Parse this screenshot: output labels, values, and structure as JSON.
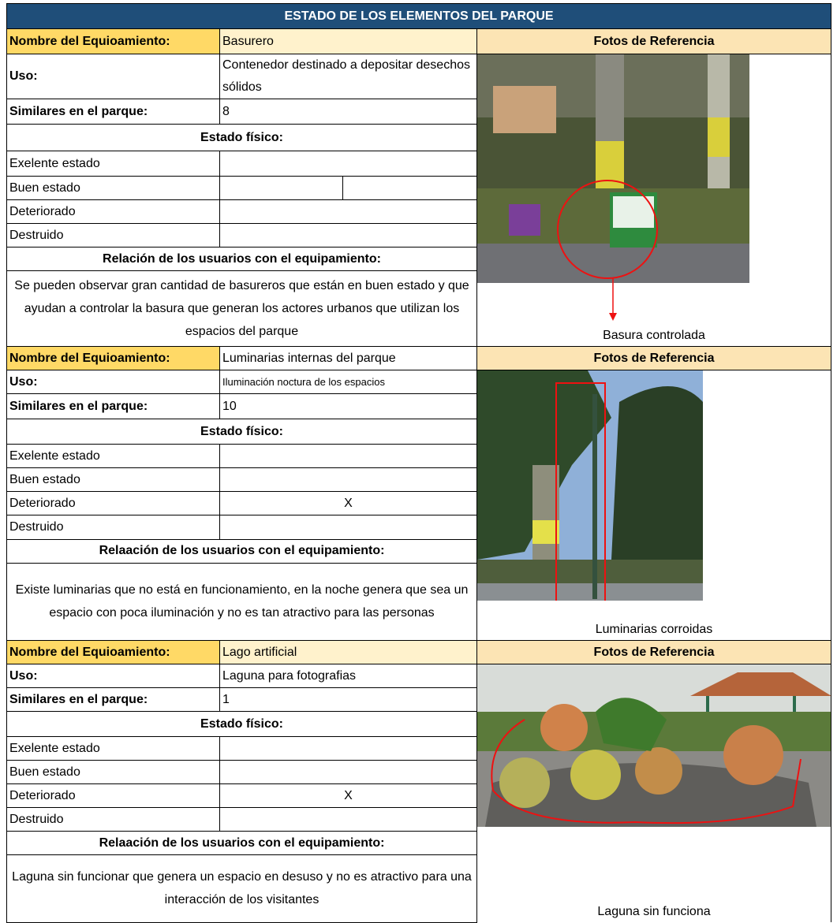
{
  "title": "ESTADO DE LOS ELEMENTOS DEL PARQUE",
  "sections": [
    {
      "name_label": "Nombre del Equioamiento:",
      "name": "Basurero",
      "photos_header": "Fotos de Referencia",
      "uso_label": "Uso:",
      "uso": "Contenedor destinado a depositar desechos sólidos",
      "similares_label": "Similares en el parque:",
      "similares": 8,
      "estado_header": "Estado físico:",
      "estados": [
        {
          "label": "Exelente estado"
        },
        {
          "label": "Buen estado"
        },
        {
          "label": "Deteriorado"
        },
        {
          "label": "Destruido"
        }
      ],
      "relacion_header": "Relación de los usuarios con el equipamiento:",
      "relacion": "Se pueden observar gran cantidad de basureros que están en buen estado y que ayudan a controlar la basura que generan los actores urbanos que utilizan los espacios  del parque",
      "photo_caption": "Basura controlada"
    },
    {
      "name_label": "Nombre del Equioamiento:",
      "name": "Luminarias internas del parque",
      "photos_header": "Fotos de Referencia",
      "uso_label": "Uso:",
      "uso": "Iluminación noctura de los espacios",
      "similares_label": "Similares en el parque:",
      "similares": 10,
      "estado_header": "Estado físico:",
      "estados": [
        {
          "label": "Exelente estado"
        },
        {
          "label": "Buen estado"
        },
        {
          "label": "Deteriorado",
          "mark": "X"
        },
        {
          "label": "Destruido"
        }
      ],
      "relacion_header": "Relaación de los usuarios con el equipamiento:",
      "relacion": "Existe luminarias que no está en funcionamiento, en la noche genera que sea un espacio con poca iluminación y no es tan atractivo para las personas",
      "photo_caption": "Luminarias corroidas"
    },
    {
      "name_label": "Nombre del Equioamiento:",
      "name": "Lago artificial",
      "photos_header": "Fotos de Referencia",
      "uso_label": "Uso:",
      "uso": "Laguna para fotografias",
      "similares_label": "Similares en el parque:",
      "similares": 1,
      "estado_header": "Estado físico:",
      "estados": [
        {
          "label": "Exelente estado"
        },
        {
          "label": "Buen estado"
        },
        {
          "label": "Deteriorado",
          "mark": "X"
        },
        {
          "label": "Destruido"
        }
      ],
      "relacion_header": "Relaación de los usuarios con el equipamiento:",
      "relacion": "Laguna sin funcionar que genera un espacio en desuso y no es atractivo para una interacción de los visitantes",
      "photo_caption": "Laguna sin funciona"
    }
  ]
}
